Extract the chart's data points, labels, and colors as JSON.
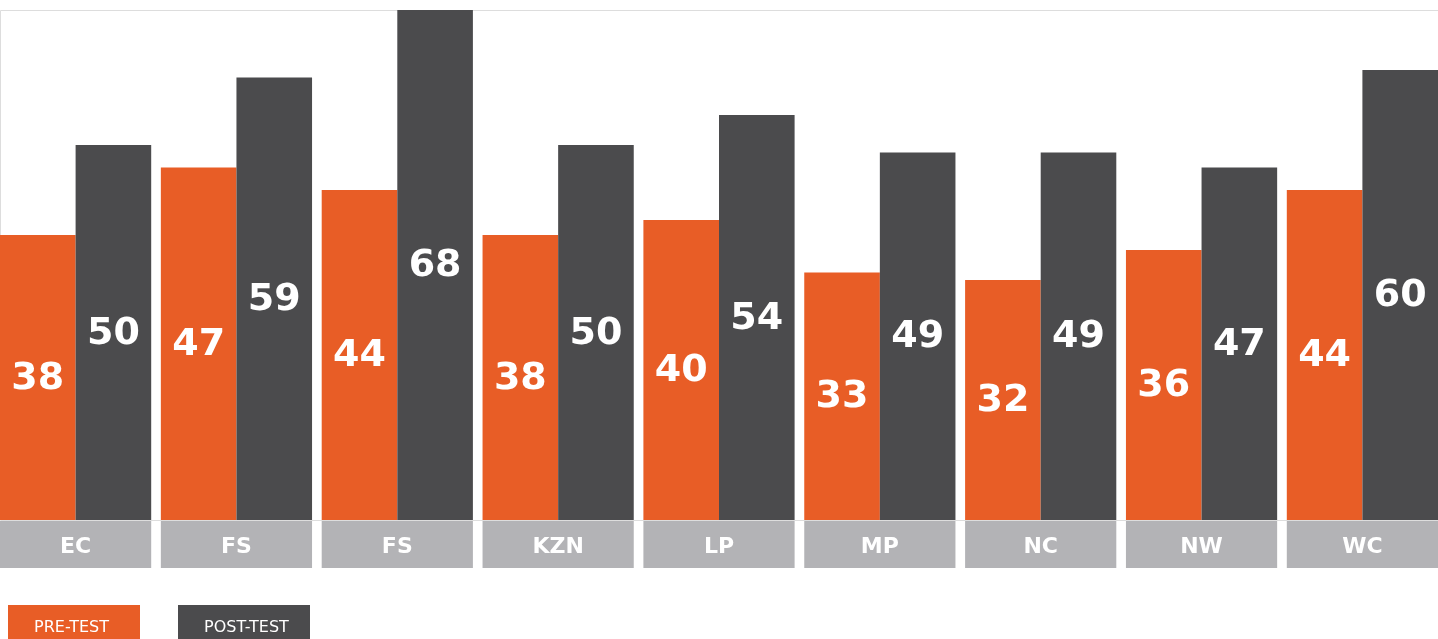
{
  "chart_data": {
    "type": "bar",
    "categories": [
      "EC",
      "FS",
      "FS",
      "KZN",
      "LP",
      "MP",
      "NC",
      "NW",
      "WC"
    ],
    "series": [
      {
        "name": "PRE-TEST",
        "color": "#e85d26",
        "values": [
          38,
          47,
          44,
          38,
          40,
          33,
          32,
          36,
          44
        ]
      },
      {
        "name": "POST-TEST",
        "color": "#4b4b4d",
        "values": [
          50,
          59,
          68,
          50,
          54,
          49,
          49,
          47,
          60
        ]
      }
    ],
    "data_labels": true,
    "legend": "bottom left"
  }
}
